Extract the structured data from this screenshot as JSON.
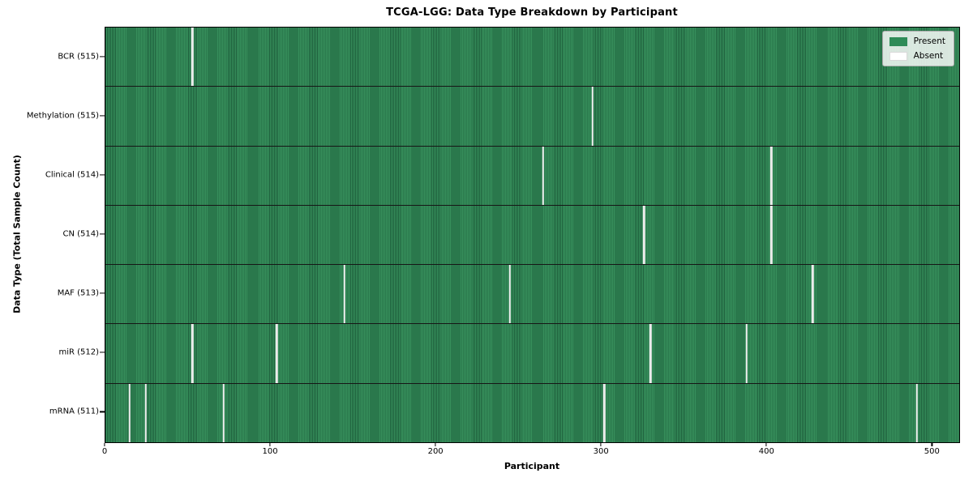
{
  "figure": {
    "title": "TCGA-LGG: Data Type Breakdown by Participant",
    "xlabel": "Participant",
    "ylabel": "Data Type (Total Sample Count)"
  },
  "legend": {
    "items": [
      {
        "label": "Present",
        "color": "#2e8b57",
        "border": "#2e8b57"
      },
      {
        "label": "Absent",
        "color": "#ffffff",
        "border": "#d9d9d9"
      }
    ]
  },
  "chart_data": {
    "type": "heatmap",
    "title": "TCGA-LGG: Data Type Breakdown by Participant",
    "xlabel": "Participant",
    "ylabel": "Data Type (Total Sample Count)",
    "x_ticks": [
      0,
      100,
      200,
      300,
      400,
      500
    ],
    "x_range": [
      0,
      516
    ],
    "n_participants": 516,
    "grid": false,
    "legend": [
      "Present",
      "Absent"
    ],
    "legend_position": "upper right",
    "colors": {
      "present": "#2e8b57",
      "present_edge": "#1e5f3c",
      "absent": "#ececec"
    },
    "rows": [
      {
        "label": "BCR (515)",
        "data_type": "BCR",
        "total_samples": 515,
        "absent_participants": [
          52
        ]
      },
      {
        "label": "Methylation (515)",
        "data_type": "Methylation",
        "total_samples": 515,
        "absent_participants": [
          294
        ]
      },
      {
        "label": "Clinical (514)",
        "data_type": "Clinical",
        "total_samples": 514,
        "absent_participants": [
          264,
          402
        ]
      },
      {
        "label": "CN (514)",
        "data_type": "CN",
        "total_samples": 514,
        "absent_participants": [
          325,
          402
        ]
      },
      {
        "label": "MAF (513)",
        "data_type": "MAF",
        "total_samples": 513,
        "absent_participants": [
          144,
          244,
          427
        ]
      },
      {
        "label": "miR (512)",
        "data_type": "miR",
        "total_samples": 512,
        "absent_participants": [
          52,
          103,
          329,
          387
        ]
      },
      {
        "label": "mRNA (511)",
        "data_type": "mRNA",
        "total_samples": 511,
        "absent_participants": [
          14,
          24,
          71,
          301,
          490
        ]
      }
    ]
  }
}
